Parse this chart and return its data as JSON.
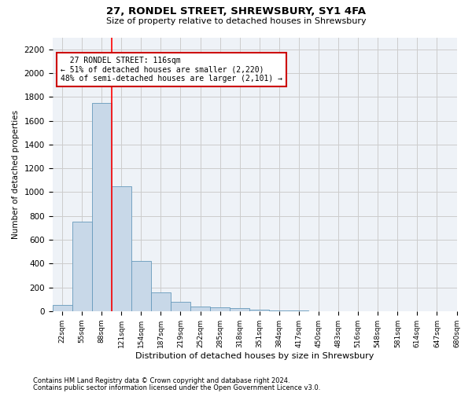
{
  "title1": "27, RONDEL STREET, SHREWSBURY, SY1 4FA",
  "title2": "Size of property relative to detached houses in Shrewsbury",
  "xlabel": "Distribution of detached houses by size in Shrewsbury",
  "ylabel": "Number of detached properties",
  "footnote1": "Contains HM Land Registry data © Crown copyright and database right 2024.",
  "footnote2": "Contains public sector information licensed under the Open Government Licence v3.0.",
  "bin_labels": [
    "22sqm",
    "55sqm",
    "88sqm",
    "121sqm",
    "154sqm",
    "187sqm",
    "219sqm",
    "252sqm",
    "285sqm",
    "318sqm",
    "351sqm",
    "384sqm",
    "417sqm",
    "450sqm",
    "483sqm",
    "516sqm",
    "548sqm",
    "581sqm",
    "614sqm",
    "647sqm",
    "680sqm"
  ],
  "bar_values": [
    50,
    750,
    1750,
    1050,
    420,
    155,
    75,
    40,
    30,
    25,
    10,
    5,
    3,
    2,
    1,
    1,
    0,
    0,
    0,
    0
  ],
  "bar_color": "#c8d8e8",
  "bar_edge_color": "#6699bb",
  "red_line_x": 2.5,
  "annotation_title": "27 RONDEL STREET: 116sqm",
  "annotation_line1": "← 51% of detached houses are smaller (2,220)",
  "annotation_line2": "48% of semi-detached houses are larger (2,101) →",
  "annotation_box_color": "#ffffff",
  "annotation_box_edge": "#cc0000",
  "ylim": [
    0,
    2300
  ],
  "yticks": [
    0,
    200,
    400,
    600,
    800,
    1000,
    1200,
    1400,
    1600,
    1800,
    2000,
    2200
  ],
  "grid_color": "#cccccc",
  "bg_color": "#eef2f7"
}
